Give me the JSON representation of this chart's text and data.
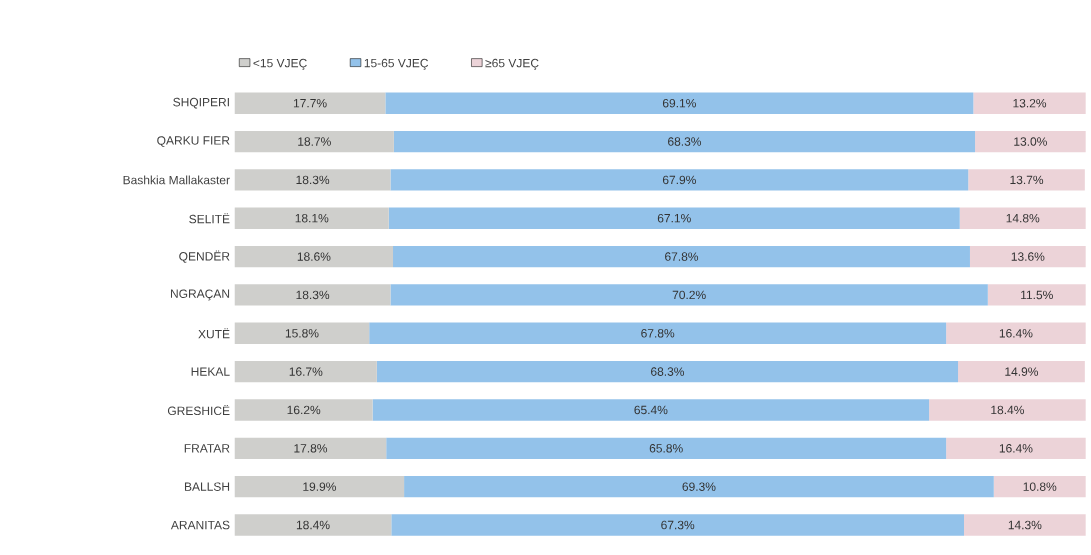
{
  "chart_data": {
    "type": "bar",
    "orientation": "horizontal",
    "stacked": true,
    "legend": "top left",
    "categories": [
      "SHQIPERI",
      "QARKU FIER",
      "Bashkia Mallakaster",
      "SELITË",
      "QENDËR",
      "NGRAÇAN",
      "XUTË",
      "HEKAL",
      "GRESHICË",
      "FRATAR",
      "BALLSH",
      "ARANITAS"
    ],
    "series": [
      {
        "name": "<15 VJEÇ",
        "color": "#cfcfcc",
        "values": [
          17.7,
          18.7,
          18.3,
          18.1,
          18.6,
          18.3,
          15.8,
          16.7,
          16.2,
          17.8,
          19.9,
          18.4
        ],
        "value_labels": [
          "17.7%",
          "18.7%",
          "18.3%",
          "18.1%",
          "18.6%",
          "18.3%",
          "15.8%",
          "16.7%",
          "16.2%",
          "17.8%",
          "19.9%",
          "18.4%"
        ]
      },
      {
        "name": "15-65 VJEÇ",
        "color": "#93c2ea",
        "values": [
          69.1,
          68.3,
          67.9,
          67.1,
          67.8,
          70.2,
          67.8,
          68.3,
          65.4,
          65.8,
          69.3,
          67.3
        ],
        "value_labels": [
          "69.1%",
          "68.3%",
          "67.9%",
          "67.1%",
          "67.8%",
          "70.2%",
          "67.8%",
          "68.3%",
          "65.4%",
          "65.8%",
          "69.3%",
          "67.3%"
        ]
      },
      {
        "name": "≥65 VJEÇ",
        "color": "#ecd3d8",
        "values": [
          13.2,
          13.0,
          13.7,
          14.8,
          13.6,
          11.5,
          16.4,
          14.9,
          18.4,
          16.4,
          10.8,
          14.3
        ],
        "value_labels": [
          "13.2%",
          "13.0%",
          "13.7%",
          "14.8%",
          "13.6%",
          "11.5%",
          "16.4%",
          "14.9%",
          "18.4%",
          "16.4%",
          "10.8%",
          "14.3%"
        ]
      }
    ]
  }
}
